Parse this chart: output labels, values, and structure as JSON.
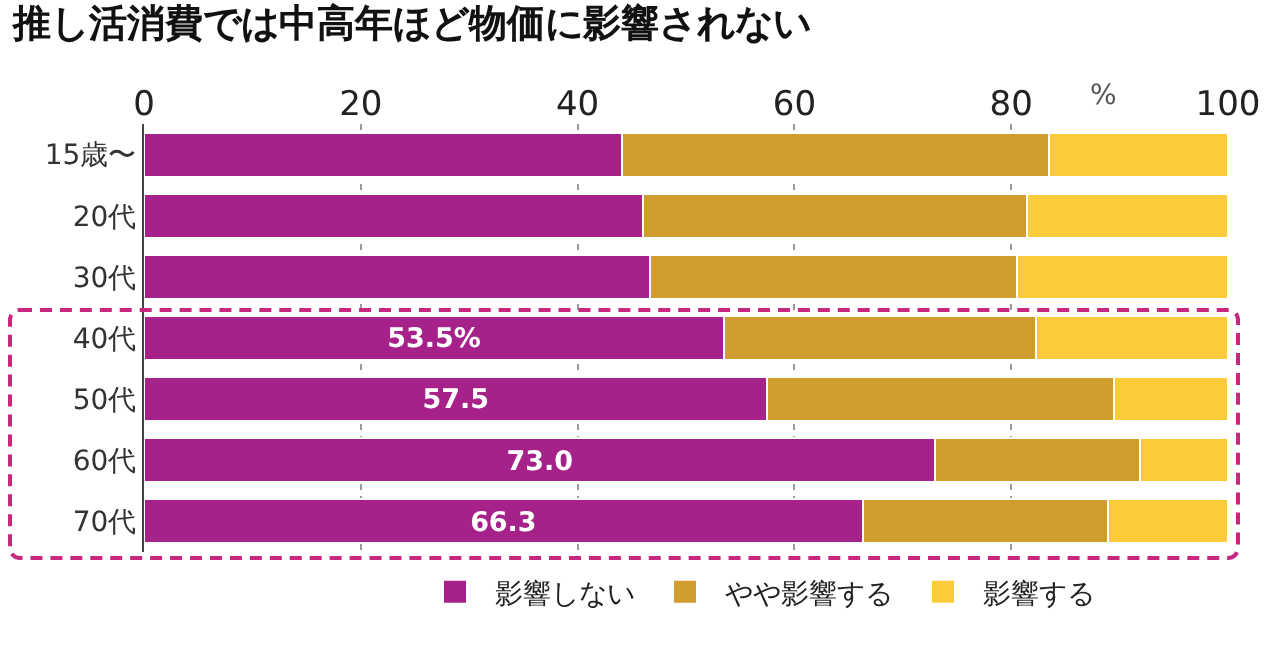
{
  "chart_data": {
    "type": "bar",
    "title": "推し活消費では中高年ほど物価に影響されない",
    "orientation": "horizontal",
    "stacked": true,
    "categories": [
      "15歳〜",
      "20代",
      "30代",
      "40代",
      "50代",
      "60代",
      "70代"
    ],
    "series": [
      {
        "name": "影響しない",
        "color": "#a6228a",
        "values": [
          44.1,
          46.0,
          46.7,
          53.5,
          57.5,
          73.0,
          66.3
        ],
        "value_labels": [
          null,
          null,
          null,
          "53.5%",
          "57.5",
          "73.0",
          "66.3"
        ]
      },
      {
        "name": "やや影響する",
        "color": "#d09c2e",
        "values": [
          39.4,
          35.5,
          33.8,
          28.8,
          32.0,
          18.9,
          22.6
        ]
      },
      {
        "name": "影響する",
        "color": "#fccb3a",
        "values": [
          16.5,
          18.5,
          19.5,
          17.7,
          10.5,
          8.1,
          11.1
        ]
      }
    ],
    "xlim": [
      0,
      100
    ],
    "xticks": [
      0,
      20,
      40,
      60,
      80,
      100
    ],
    "annotations": [
      "%"
    ],
    "grid": "x",
    "legend": "bottom"
  }
}
